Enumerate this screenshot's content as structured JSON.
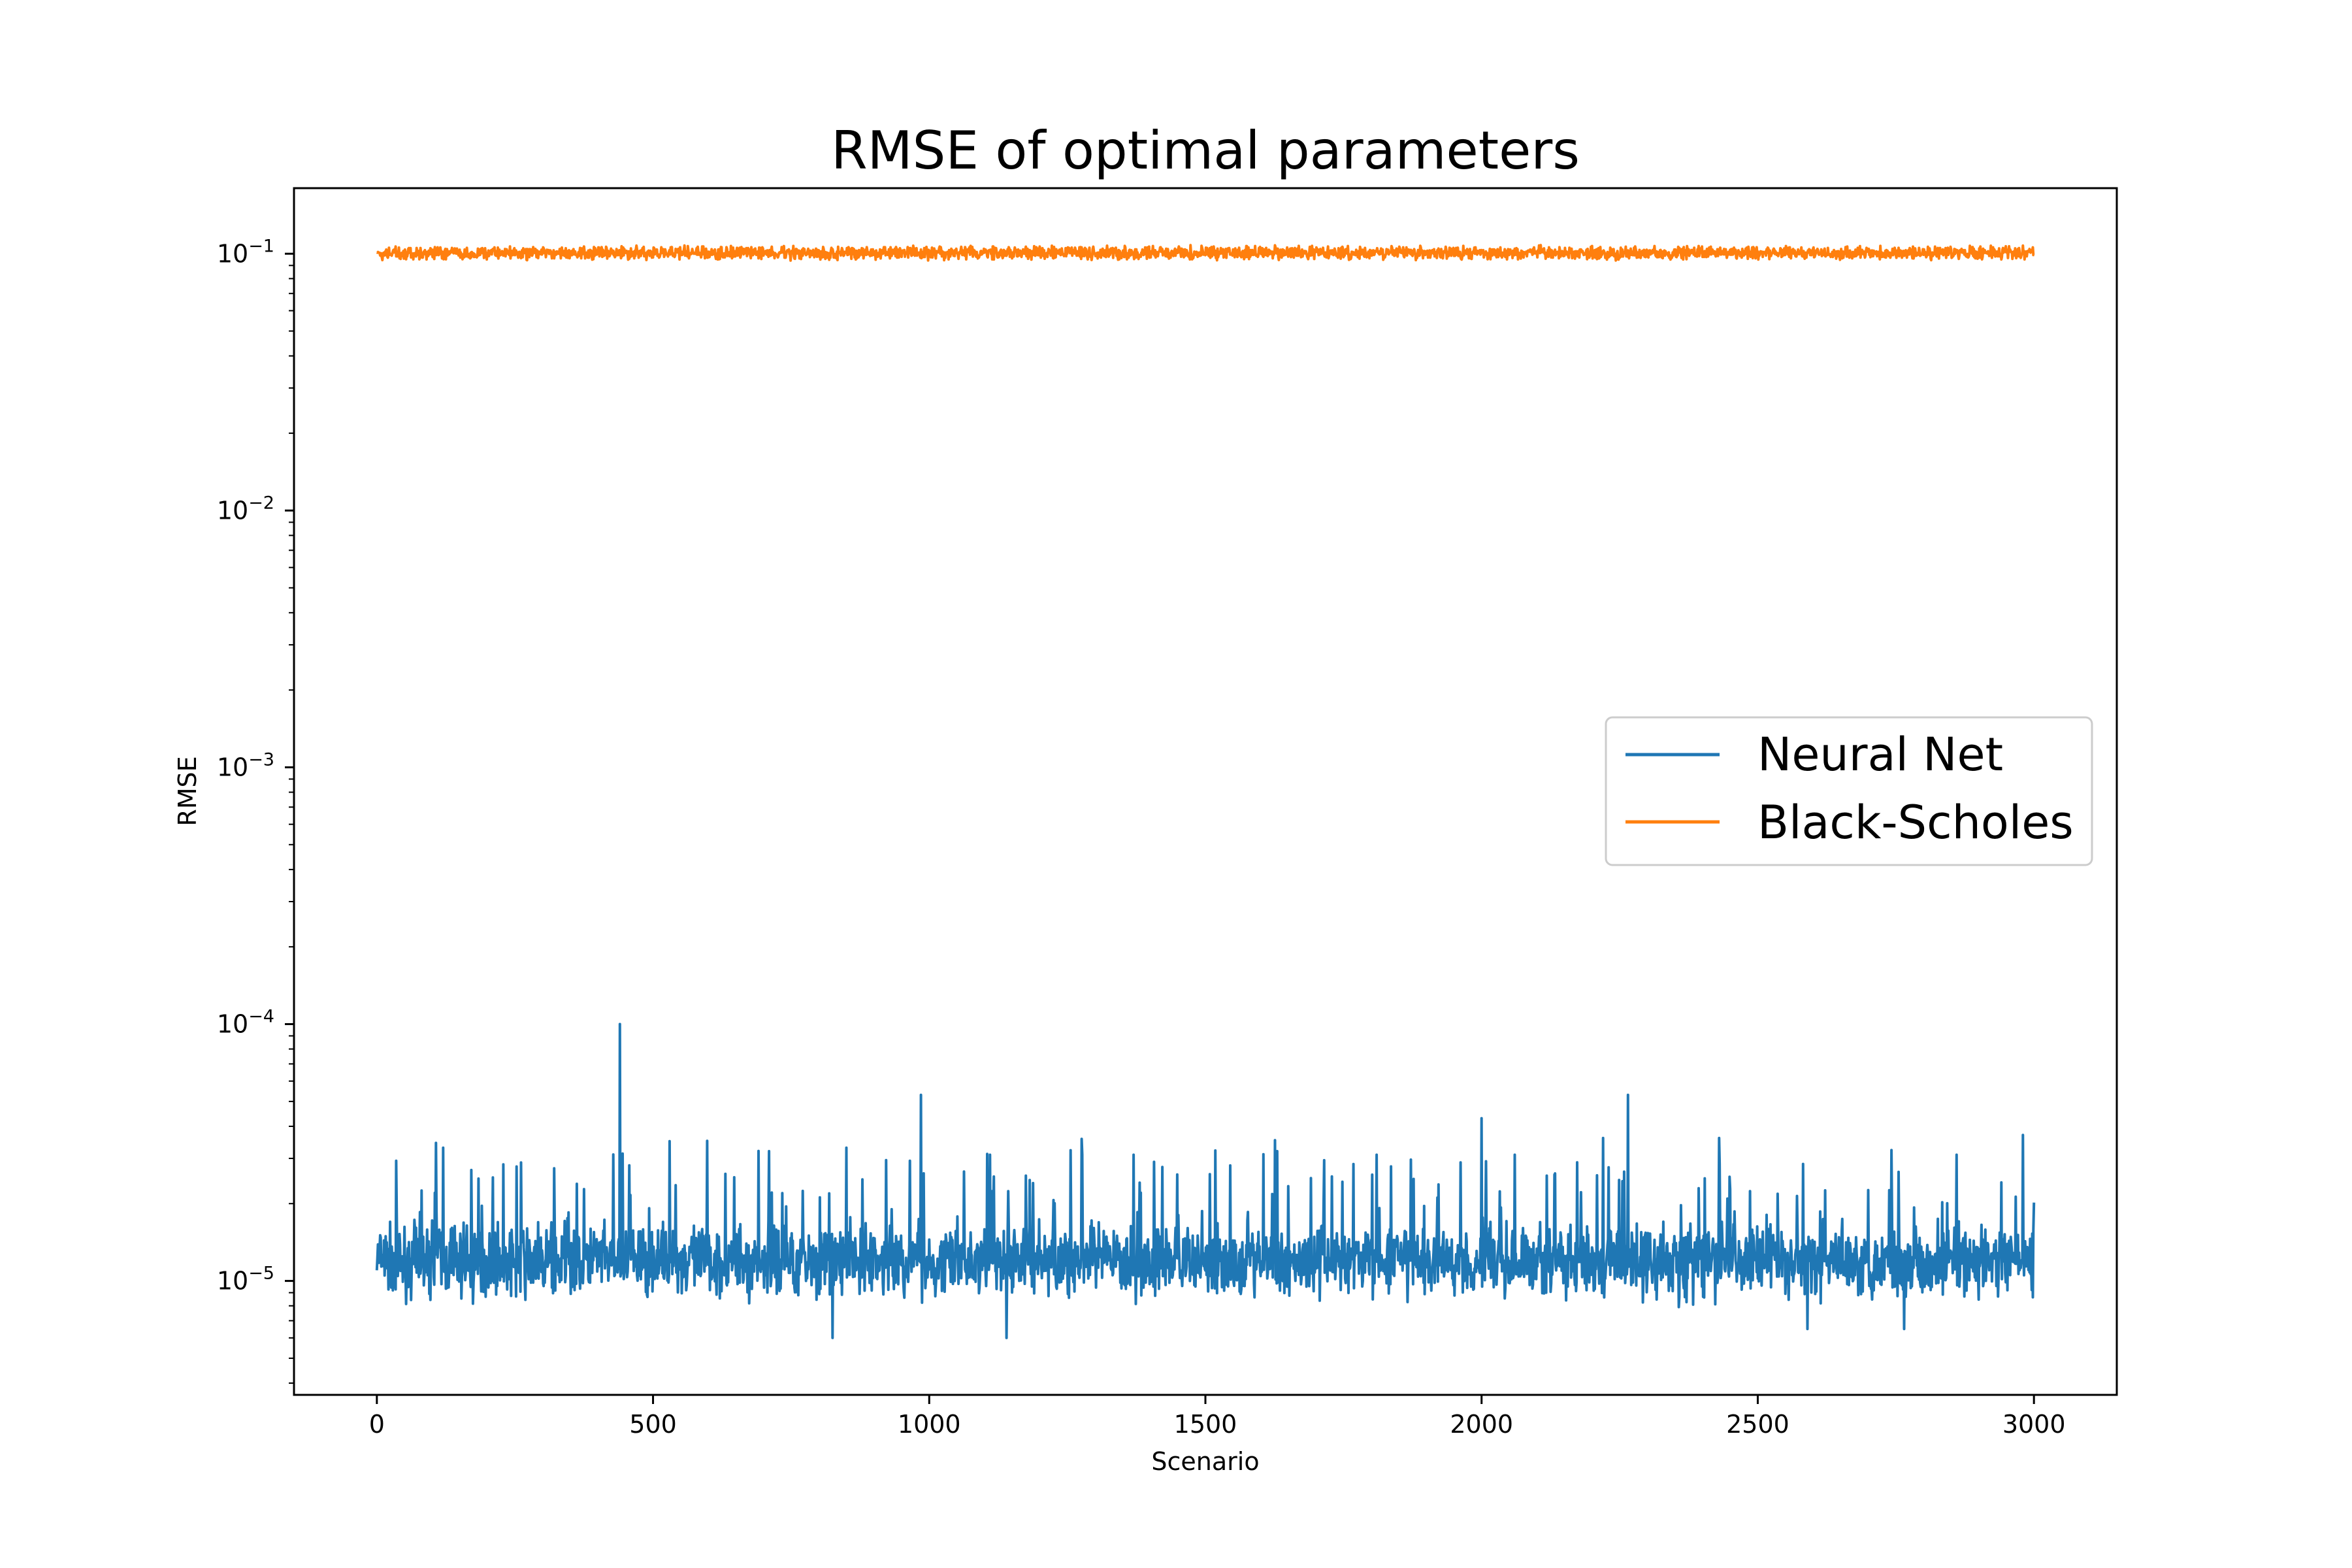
{
  "chart_data": {
    "type": "line",
    "title": "RMSE of optimal parameters",
    "xlabel": "Scenario",
    "ylabel": "RMSE",
    "xlim": [
      -150,
      3150
    ],
    "ylim": [
      3.6e-06,
      0.18
    ],
    "yscale": "log",
    "x_ticks": [
      0,
      500,
      1000,
      1500,
      2000,
      2500,
      3000
    ],
    "x_tick_labels": [
      "0",
      "500",
      "1000",
      "1500",
      "2000",
      "2500",
      "3000"
    ],
    "y_ticks": [
      1e-05,
      0.0001,
      0.001,
      0.01,
      0.1
    ],
    "y_tick_labels": [
      {
        "base": "10",
        "exp": "−5"
      },
      {
        "base": "10",
        "exp": "−4"
      },
      {
        "base": "10",
        "exp": "−3"
      },
      {
        "base": "10",
        "exp": "−2"
      },
      {
        "base": "10",
        "exp": "−1"
      }
    ],
    "grid": false,
    "legend_position": "center-right",
    "series": [
      {
        "name": "Neural Net",
        "color": "#1f77b4",
        "x_range": [
          0,
          3000
        ],
        "typical_value": 1.2e-05,
        "approx_min": 6e-06,
        "spikes": [
          {
            "x": 440,
            "y": 0.0001
          },
          {
            "x": 985,
            "y": 5.3e-05
          },
          {
            "x": 2265,
            "y": 5.3e-05
          },
          {
            "x": 2000,
            "y": 4.3e-05
          },
          {
            "x": 2980,
            "y": 3.7e-05
          },
          {
            "x": 2220,
            "y": 3.6e-05
          },
          {
            "x": 2430,
            "y": 3.6e-05
          },
          {
            "x": 530,
            "y": 3.5e-05
          },
          {
            "x": 850,
            "y": 3.3e-05
          },
          {
            "x": 120,
            "y": 3.3e-05
          },
          {
            "x": 710,
            "y": 3.2e-05
          },
          {
            "x": 1370,
            "y": 3.1e-05
          },
          {
            "x": 1110,
            "y": 3.1e-05
          },
          {
            "x": 1630,
            "y": 3.2e-05
          },
          {
            "x": 1810,
            "y": 3.1e-05
          },
          {
            "x": 2060,
            "y": 3.1e-05
          },
          {
            "x": 2590,
            "y": 3.2e-05
          },
          {
            "x": 2860,
            "y": 3.1e-05
          }
        ],
        "dips": [
          {
            "x": 825,
            "y": 6e-06
          },
          {
            "x": 1140,
            "y": 6e-06
          },
          {
            "x": 2590,
            "y": 6.5e-06
          },
          {
            "x": 2765,
            "y": 6.5e-06
          }
        ]
      },
      {
        "name": "Black-Scholes",
        "color": "#ff7f0e",
        "x_range": [
          0,
          3000
        ],
        "typical_value": 0.1,
        "approx_min": 0.094,
        "approx_max": 0.108
      }
    ]
  }
}
